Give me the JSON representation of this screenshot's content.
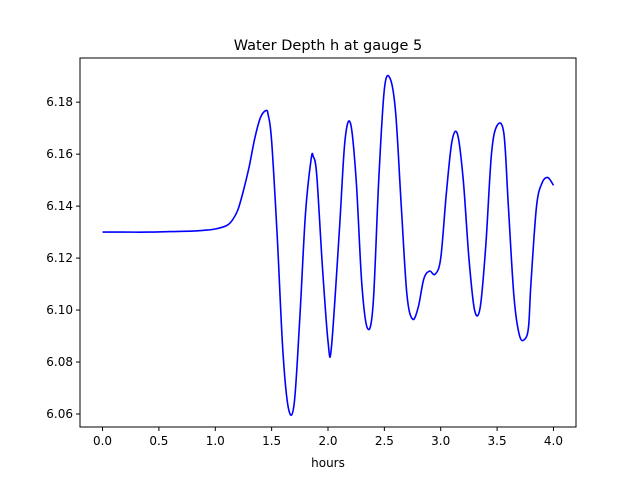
{
  "chart_data": {
    "type": "line",
    "title": "Water Depth h at gauge 5",
    "xlabel": "hours",
    "ylabel": "",
    "xlim": [
      -0.2,
      4.2
    ],
    "ylim": [
      6.055,
      6.197
    ],
    "xticks": [
      0.0,
      0.5,
      1.0,
      1.5,
      2.0,
      2.5,
      3.0,
      3.5,
      4.0
    ],
    "xtick_labels": [
      "0.0",
      "0.5",
      "1.0",
      "1.5",
      "2.0",
      "2.5",
      "3.0",
      "3.5",
      "4.0"
    ],
    "yticks": [
      6.06,
      6.08,
      6.1,
      6.12,
      6.14,
      6.16,
      6.18
    ],
    "ytick_labels": [
      "6.06",
      "6.08",
      "6.10",
      "6.12",
      "6.14",
      "6.16",
      "6.18"
    ],
    "grid": false,
    "series": [
      {
        "color": "#0000ff",
        "x": [
          0.0,
          0.2,
          0.4,
          0.6,
          0.8,
          0.9,
          1.0,
          1.1,
          1.15,
          1.2,
          1.25,
          1.3,
          1.35,
          1.4,
          1.45,
          1.47,
          1.5,
          1.55,
          1.6,
          1.65,
          1.7,
          1.75,
          1.8,
          1.85,
          1.87,
          1.9,
          1.95,
          2.0,
          2.03,
          2.1,
          2.15,
          2.2,
          2.25,
          2.3,
          2.35,
          2.4,
          2.45,
          2.5,
          2.55,
          2.6,
          2.65,
          2.7,
          2.75,
          2.8,
          2.85,
          2.9,
          2.95,
          3.0,
          3.05,
          3.1,
          3.15,
          3.2,
          3.25,
          3.3,
          3.35,
          3.4,
          3.45,
          3.5,
          3.56,
          3.6,
          3.65,
          3.7,
          3.75,
          3.78,
          3.8,
          3.85,
          3.9,
          3.95,
          4.0
        ],
        "y": [
          6.13,
          6.13,
          6.13,
          6.1302,
          6.1304,
          6.1307,
          6.1312,
          6.1325,
          6.1345,
          6.1385,
          6.146,
          6.155,
          6.166,
          6.174,
          6.1768,
          6.175,
          6.165,
          6.128,
          6.084,
          6.062,
          6.064,
          6.097,
          6.137,
          6.158,
          6.159,
          6.152,
          6.117,
          6.088,
          6.0855,
          6.13,
          6.165,
          6.1718,
          6.15,
          6.11,
          6.093,
          6.102,
          6.15,
          6.185,
          6.1892,
          6.176,
          6.14,
          6.106,
          6.0965,
          6.101,
          6.112,
          6.115,
          6.1138,
          6.12,
          6.145,
          6.165,
          6.1675,
          6.15,
          6.12,
          6.1,
          6.101,
          6.125,
          6.16,
          6.171,
          6.168,
          6.14,
          6.105,
          6.09,
          6.089,
          6.094,
          6.11,
          6.14,
          6.149,
          6.151,
          6.148
        ]
      }
    ]
  }
}
